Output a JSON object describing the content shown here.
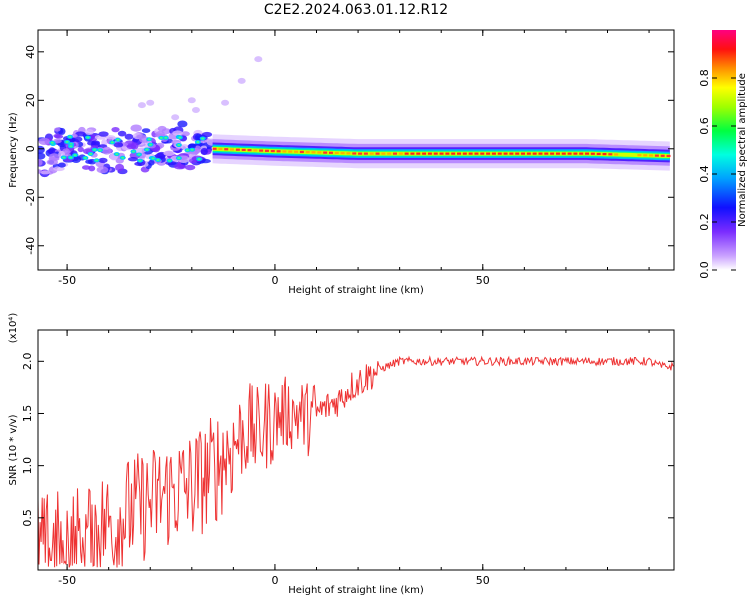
{
  "chart_data": [
    {
      "type": "heatmap",
      "title": "C2E2.2024.063.01.12.R12",
      "xlabel": "Height of straight line (km)",
      "ylabel": "Frequency (Hz)",
      "xlim": [
        -57,
        96
      ],
      "ylim": [
        -50,
        49
      ],
      "xticks": [
        -50,
        0,
        50
      ],
      "yticks": [
        -40,
        -20,
        0,
        20,
        40
      ],
      "colorbar": {
        "label": "Normalized spectral amplitude",
        "range": [
          0,
          1
        ],
        "ticks": [
          "0.0",
          "0.2",
          "0.4",
          "0.6",
          "0.8"
        ]
      },
      "ridge": [
        {
          "x": -55,
          "y": 0
        },
        {
          "x": -40,
          "y": 0
        },
        {
          "x": -25,
          "y": 0
        },
        {
          "x": -15,
          "y": 0
        },
        {
          "x": 0,
          "y": -1
        },
        {
          "x": 20,
          "y": -2
        },
        {
          "x": 50,
          "y": -2
        },
        {
          "x": 75,
          "y": -2
        },
        {
          "x": 95,
          "y": -3
        }
      ]
    },
    {
      "type": "line",
      "xlabel": "Height of straight line (km)",
      "ylabel": "SNR (10 * v/v)",
      "multiplier": "(x10⁴)",
      "xlim": [
        -57,
        96
      ],
      "ylim": [
        0,
        2.3
      ],
      "xticks": [
        -50,
        0,
        50
      ],
      "yticks": [
        "0.5",
        "1.0",
        "1.5",
        "2.0"
      ],
      "color": "#ee3333",
      "series": [
        {
          "x": [
            -57,
            -50,
            -45,
            -40,
            -35,
            -30,
            -25,
            -20,
            -15,
            -12,
            -10,
            -8,
            -6,
            -4,
            -2,
            0,
            2,
            4,
            6,
            8,
            10,
            12,
            14,
            16,
            18,
            20,
            22,
            25,
            28,
            30,
            32,
            35,
            40,
            45,
            50,
            55,
            60,
            65,
            70,
            75,
            80,
            85,
            90,
            93,
            96
          ],
          "y": [
            0.2,
            0.25,
            0.35,
            0.45,
            0.55,
            0.65,
            0.75,
            0.8,
            0.95,
            1.1,
            1.2,
            1.3,
            1.35,
            1.3,
            1.4,
            1.45,
            1.5,
            1.5,
            1.5,
            1.45,
            1.5,
            1.55,
            1.6,
            1.65,
            1.75,
            1.8,
            1.85,
            1.92,
            1.97,
            2.0,
            2.0,
            2.0,
            2.0,
            2.0,
            2.0,
            2.0,
            2.0,
            2.0,
            2.0,
            2.0,
            2.0,
            2.0,
            2.0,
            1.95,
            1.95
          ]
        }
      ]
    }
  ]
}
